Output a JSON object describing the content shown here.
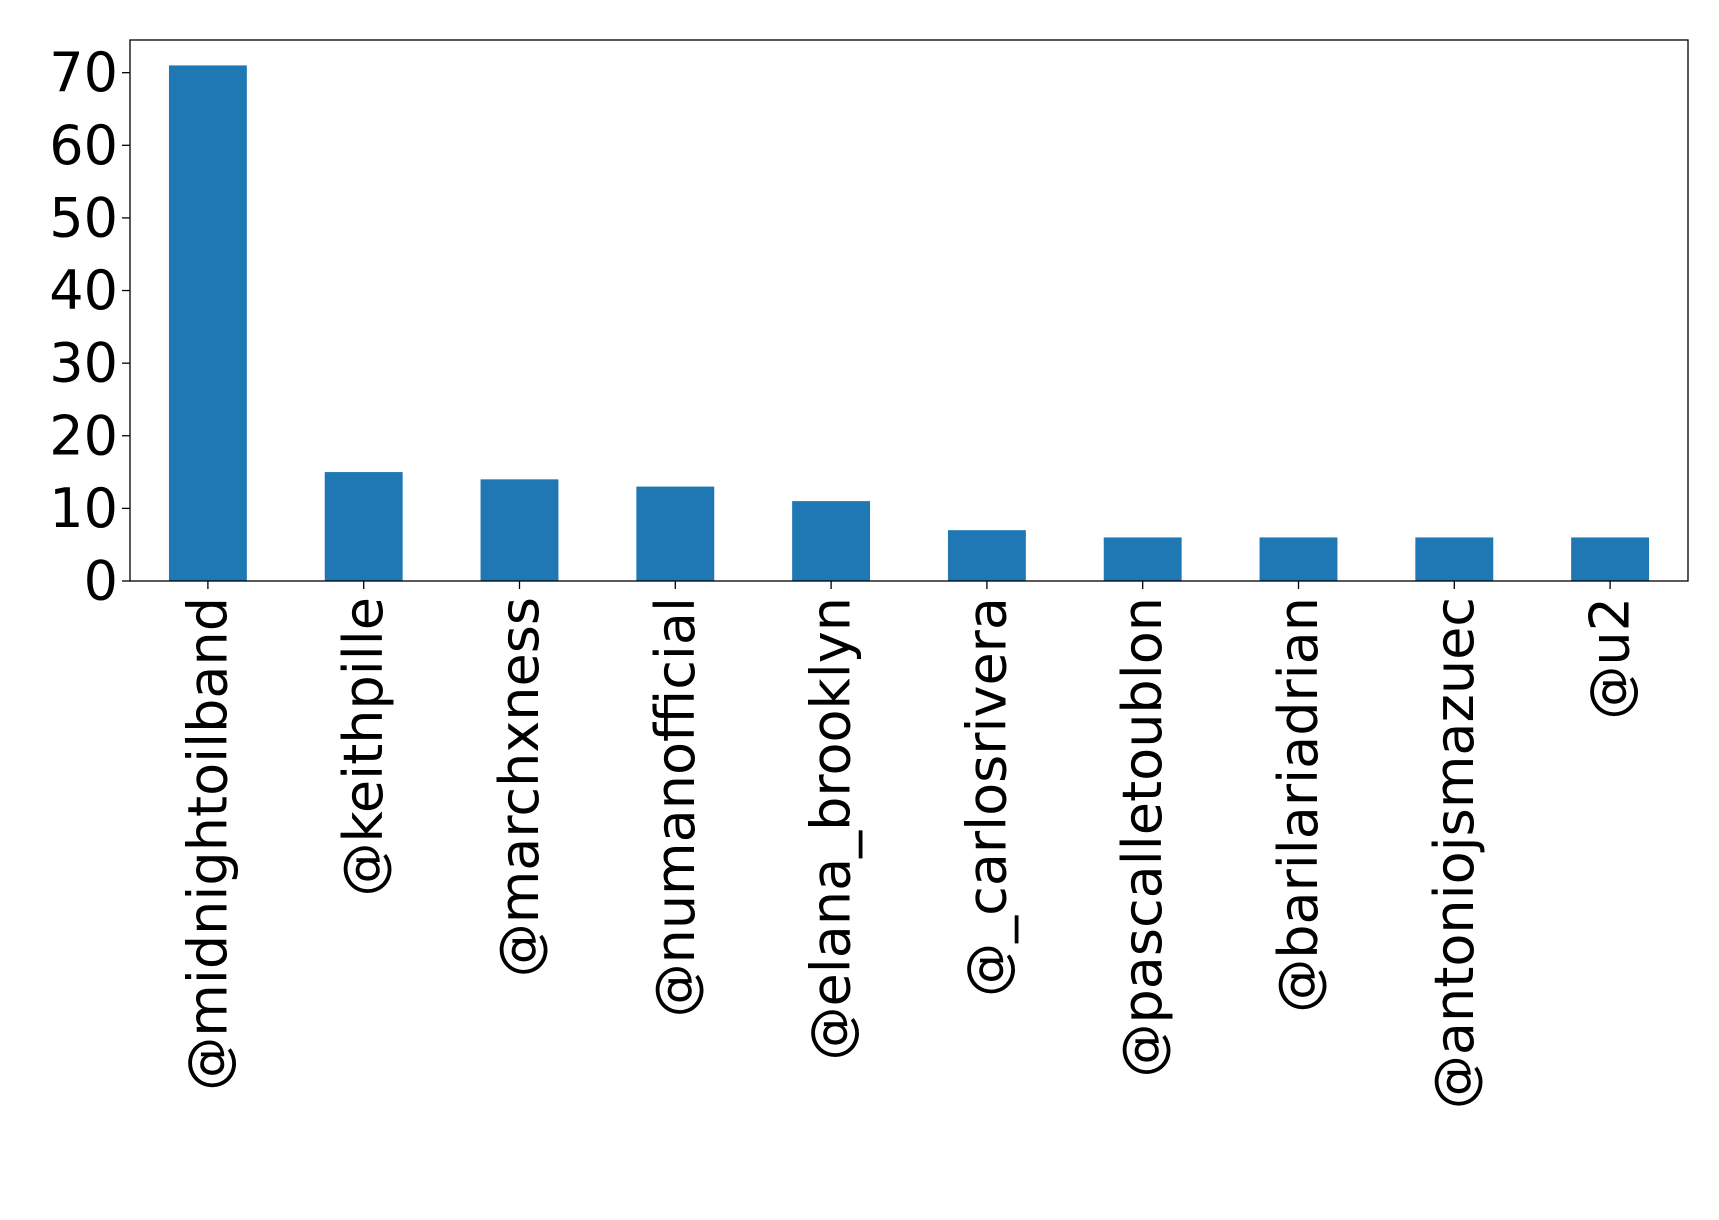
{
  "chart_data": {
    "type": "bar",
    "title": "",
    "xlabel": "",
    "ylabel": "",
    "categories": [
      "@midnightoilband",
      "@keithpille",
      "@marchxness",
      "@numanofficial",
      "@elana_brooklyn",
      "@_carlosrivera",
      "@pascalletoublon",
      "@barilariadrian",
      "@antoniojsmazuec",
      "@u2"
    ],
    "values": [
      71,
      15,
      14,
      13,
      11,
      7,
      6,
      6,
      6,
      6
    ],
    "ylim": [
      0,
      74.5
    ],
    "yticks": [
      0,
      10,
      20,
      30,
      40,
      50,
      60,
      70
    ],
    "grid": false,
    "legend": "none",
    "bar_color": "#1f77b4"
  }
}
